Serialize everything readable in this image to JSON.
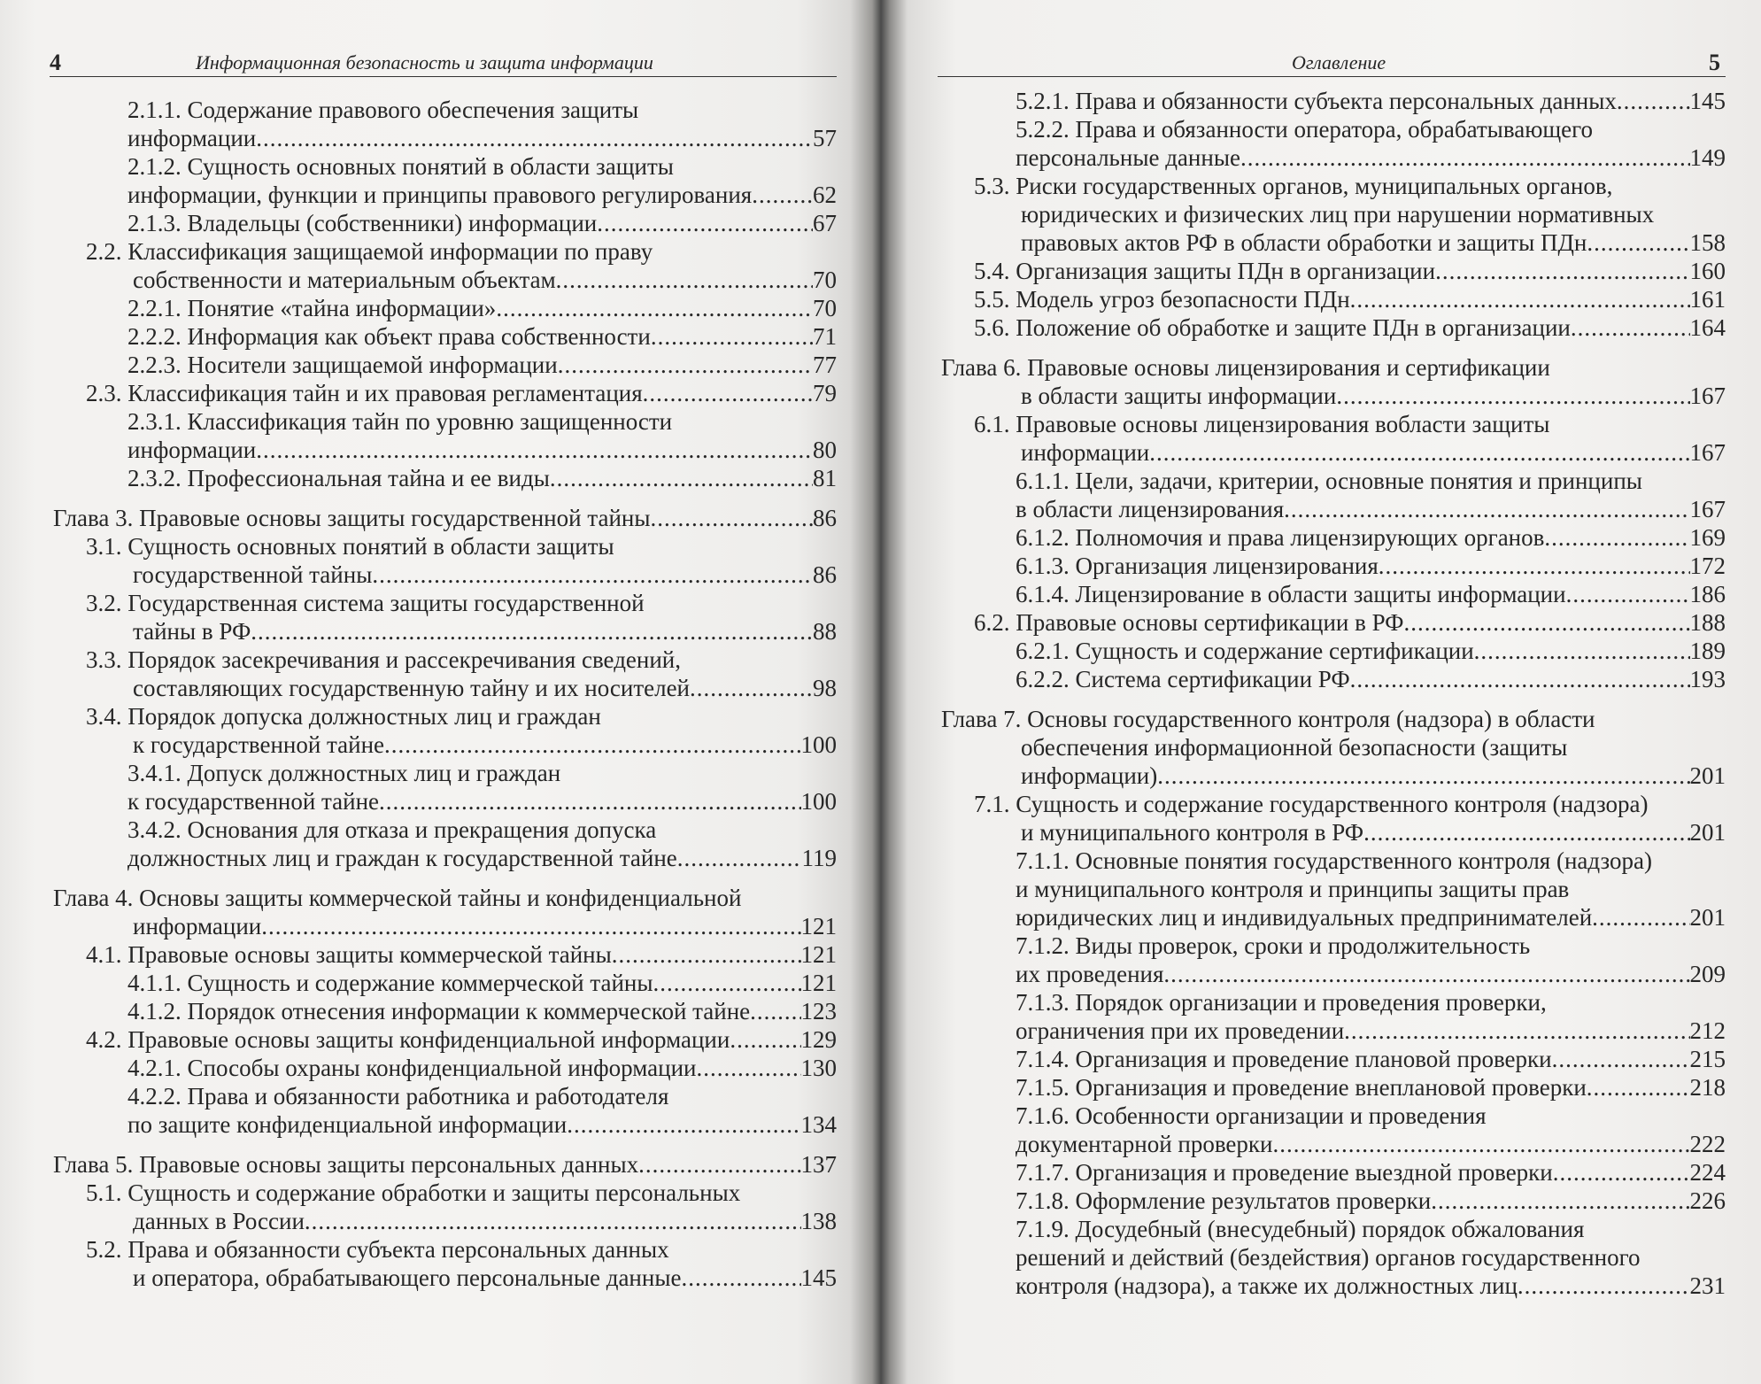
{
  "left_page": {
    "page_number": "4",
    "running_title": "Информационная безопасность и защита информации",
    "entries": [
      {
        "level": 3,
        "lines": [
          "2.1.1. Содержание правового обеспечения защиты",
          "информации"
        ],
        "page": "57"
      },
      {
        "level": 3,
        "lines": [
          "2.1.2. Сущность основных понятий в области защиты",
          "информации, функции и принципы правового регулирования"
        ],
        "page": "62"
      },
      {
        "level": 3,
        "lines": [
          "2.1.3. Владельцы (собственники) информации"
        ],
        "page": "67"
      },
      {
        "level": 2,
        "lines": [
          "2.2. Классификация защищаемой информации по праву",
          "собственности и материальным объектам"
        ],
        "page": "70"
      },
      {
        "level": 3,
        "lines": [
          "2.2.1. Понятие «тайна информации»"
        ],
        "page": "70"
      },
      {
        "level": 3,
        "lines": [
          "2.2.2. Информация как объект права собственности"
        ],
        "page": "71"
      },
      {
        "level": 3,
        "lines": [
          "2.2.3. Носители защищаемой информации"
        ],
        "page": "77"
      },
      {
        "level": 2,
        "lines": [
          "2.3. Классификация тайн и их правовая регламентация"
        ],
        "page": "79"
      },
      {
        "level": 3,
        "lines": [
          "2.3.1. Классификация тайн по уровню защищенности",
          "информации"
        ],
        "page": "80"
      },
      {
        "level": 3,
        "lines": [
          "2.3.2. Профессиональная тайна и ее виды"
        ],
        "page": "81"
      },
      {
        "level": 1,
        "lines": [
          "Глава 3. Правовые основы защиты государственной тайны"
        ],
        "page": "86"
      },
      {
        "level": 2,
        "lines": [
          "3.1. Сущность основных понятий в области защиты",
          "государственной тайны"
        ],
        "page": "86"
      },
      {
        "level": 2,
        "lines": [
          "3.2. Государственная система защиты государственной",
          "тайны в РФ"
        ],
        "page": "88"
      },
      {
        "level": 2,
        "lines": [
          "3.3. Порядок засекречивания и рассекречивания сведений,",
          "составляющих государственную тайну  и их носителей"
        ],
        "page": "98"
      },
      {
        "level": 2,
        "lines": [
          "3.4. Порядок допуска должностных лиц и граждан",
          "к государственной тайне"
        ],
        "page": "100"
      },
      {
        "level": 3,
        "lines": [
          "3.4.1. Допуск должностных лиц и граждан",
          "к государственной тайне"
        ],
        "page": "100"
      },
      {
        "level": 3,
        "lines": [
          "3.4.2. Основания для отказа и прекращения допуска",
          "должностных лиц и граждан к государственной тайне"
        ],
        "page": "119"
      },
      {
        "level": 1,
        "lines": [
          "Глава 4. Основы защиты коммерческой тайны и конфиденциальной",
          "информации"
        ],
        "page": "121"
      },
      {
        "level": 2,
        "lines": [
          "4.1. Правовые основы защиты коммерческой тайны"
        ],
        "page": "121"
      },
      {
        "level": 3,
        "lines": [
          "4.1.1. Сущность и содержание коммерческой тайны"
        ],
        "page": "121"
      },
      {
        "level": 3,
        "lines": [
          "4.1.2. Порядок отнесения информации к коммерческой тайне"
        ],
        "page": "123"
      },
      {
        "level": 2,
        "lines": [
          "4.2. Правовые основы защиты конфиденциальной информации"
        ],
        "page": "129"
      },
      {
        "level": 3,
        "lines": [
          "4.2.1. Способы охраны конфиденциальной информации"
        ],
        "page": "130"
      },
      {
        "level": 3,
        "lines": [
          "4.2.2. Права и обязанности работника и работодателя",
          "по защите конфиденциальной информации"
        ],
        "page": "134"
      },
      {
        "level": 1,
        "lines": [
          "Глава 5. Правовые основы защиты персональных данных"
        ],
        "page": "137"
      },
      {
        "level": 2,
        "lines": [
          "5.1. Сущность и содержание обработки и защиты персональных",
          "данных в России"
        ],
        "page": "138"
      },
      {
        "level": 2,
        "lines": [
          "5.2. Права и обязанности субъекта персональных данных",
          "и оператора, обрабатывающего персональные данные"
        ],
        "page": "145"
      }
    ]
  },
  "right_page": {
    "page_number": "5",
    "running_title": "Оглавление",
    "entries": [
      {
        "level": 3,
        "lines": [
          "5.2.1. Права и обязанности субъекта персональных данных"
        ],
        "page": "145"
      },
      {
        "level": 3,
        "lines": [
          "5.2.2. Права и обязанности оператора, обрабатывающего",
          "персональные данные"
        ],
        "page": "149"
      },
      {
        "level": 2,
        "lines": [
          "5.3. Риски государственных органов, муниципальных органов,",
          "юридических и физических лиц при нарушении нормативных",
          "правовых актов РФ в области обработки и защиты ПДн"
        ],
        "page": "158"
      },
      {
        "level": 2,
        "lines": [
          "5.4. Организация защиты ПДн в организации"
        ],
        "page": "160"
      },
      {
        "level": 2,
        "lines": [
          "5.5. Модель угроз безопасности ПДн"
        ],
        "page": "161"
      },
      {
        "level": 2,
        "lines": [
          "5.6. Положение об обработке и защите ПДн в организации"
        ],
        "page": "164"
      },
      {
        "level": 1,
        "lines": [
          "Глава 6. Правовые основы лицензирования и сертификации",
          "в области защиты информации"
        ],
        "page": "167"
      },
      {
        "level": 2,
        "lines": [
          "6.1. Правовые основы лицензирования вобласти защиты",
          "информации"
        ],
        "page": "167"
      },
      {
        "level": 3,
        "lines": [
          "6.1.1. Цели, задачи, критерии, основные понятия и принципы",
          "в области лицензирования"
        ],
        "page": "167"
      },
      {
        "level": 3,
        "lines": [
          "6.1.2. Полномочия и права лицензирующих органов"
        ],
        "page": "169"
      },
      {
        "level": 3,
        "lines": [
          "6.1.3. Организация лицензирования"
        ],
        "page": "172"
      },
      {
        "level": 3,
        "lines": [
          "6.1.4. Лицензирование в области защиты информации"
        ],
        "page": "186"
      },
      {
        "level": 2,
        "lines": [
          "6.2. Правовые основы сертификации в РФ"
        ],
        "page": "188"
      },
      {
        "level": 3,
        "lines": [
          "6.2.1. Сущность и содержание сертификации"
        ],
        "page": "189"
      },
      {
        "level": 3,
        "lines": [
          "6.2.2. Система сертификации РФ"
        ],
        "page": "193"
      },
      {
        "level": 1,
        "lines": [
          "Глава 7. Основы государственного контроля (надзора) в области",
          "обеспечения информационной безопасности (защиты",
          "информации)"
        ],
        "page": "201"
      },
      {
        "level": 2,
        "lines": [
          "7.1. Сущность и содержание государственного контроля (надзора)",
          "и муниципального контроля в РФ"
        ],
        "page": "201"
      },
      {
        "level": 3,
        "lines": [
          "7.1.1. Основные понятия государственного контроля (надзора)",
          "и муниципального контроля и принципы защиты прав",
          "юридических лиц и индивидуальных предпринимателей"
        ],
        "page": "201"
      },
      {
        "level": 3,
        "lines": [
          "7.1.2. Виды проверок, сроки и продолжительность",
          "их проведения"
        ],
        "page": "209"
      },
      {
        "level": 3,
        "lines": [
          "7.1.3. Порядок организации и проведения проверки,",
          "ограничения при их проведении"
        ],
        "page": "212"
      },
      {
        "level": 3,
        "lines": [
          "7.1.4. Организация и проведение плановой проверки"
        ],
        "page": "215"
      },
      {
        "level": 3,
        "lines": [
          "7.1.5. Организация и проведение внеплановой проверки"
        ],
        "page": "218"
      },
      {
        "level": 3,
        "lines": [
          "7.1.6. Особенности организации и проведения",
          "документарной проверки"
        ],
        "page": "222"
      },
      {
        "level": 3,
        "lines": [
          "7.1.7. Организация и проведение выездной проверки"
        ],
        "page": "224"
      },
      {
        "level": 3,
        "lines": [
          "7.1.8. Оформление результатов проверки"
        ],
        "page": "226"
      },
      {
        "level": 3,
        "lines": [
          "7.1.9. Досудебный (внесудебный) порядок обжалования",
          "решений и действий (бездействия) органов государственного",
          "контроля (надзора), а также их должностных лиц"
        ],
        "page": "231"
      }
    ]
  }
}
